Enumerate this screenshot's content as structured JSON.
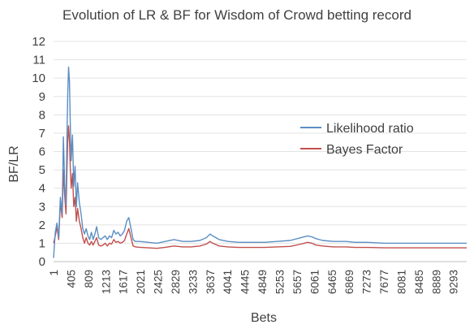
{
  "chart_data": {
    "type": "line",
    "title": "Evolution of LR & BF for Wisdom of Crowd betting record",
    "xlabel": "Bets",
    "ylabel": "BF/LR",
    "ylim": [
      0,
      12
    ],
    "xlim": [
      1,
      9600
    ],
    "yticks": [
      "0",
      "1",
      "2",
      "3",
      "4",
      "5",
      "6",
      "7",
      "8",
      "9",
      "10",
      "11",
      "12"
    ],
    "xticks": [
      1,
      405,
      809,
      1213,
      1617,
      2021,
      2425,
      2829,
      3233,
      3637,
      4041,
      4445,
      4849,
      5253,
      5657,
      6061,
      6465,
      6869,
      7273,
      7677,
      8081,
      8485,
      8889,
      9293
    ],
    "grid": true,
    "legend_position": "right-middle",
    "series": [
      {
        "name": "Likelihood ratio",
        "color": "#5b8ec3",
        "points": [
          [
            1,
            0.2
          ],
          [
            40,
            1.6
          ],
          [
            80,
            2.1
          ],
          [
            120,
            1.3
          ],
          [
            160,
            3.5
          ],
          [
            200,
            2.6
          ],
          [
            230,
            6.8
          ],
          [
            260,
            4.2
          ],
          [
            290,
            3.1
          ],
          [
            310,
            6.5
          ],
          [
            330,
            9.0
          ],
          [
            350,
            10.6
          ],
          [
            370,
            9.8
          ],
          [
            390,
            7.5
          ],
          [
            410,
            5.5
          ],
          [
            440,
            6.9
          ],
          [
            470,
            4.1
          ],
          [
            500,
            5.2
          ],
          [
            530,
            3.0
          ],
          [
            560,
            4.3
          ],
          [
            600,
            3.2
          ],
          [
            640,
            2.6
          ],
          [
            680,
            1.8
          ],
          [
            720,
            1.5
          ],
          [
            760,
            1.8
          ],
          [
            800,
            1.4
          ],
          [
            840,
            1.2
          ],
          [
            880,
            1.6
          ],
          [
            920,
            1.2
          ],
          [
            960,
            1.5
          ],
          [
            1000,
            1.9
          ],
          [
            1050,
            1.3
          ],
          [
            1100,
            1.2
          ],
          [
            1150,
            1.3
          ],
          [
            1200,
            1.4
          ],
          [
            1250,
            1.2
          ],
          [
            1300,
            1.4
          ],
          [
            1350,
            1.3
          ],
          [
            1400,
            1.7
          ],
          [
            1450,
            1.5
          ],
          [
            1500,
            1.6
          ],
          [
            1550,
            1.4
          ],
          [
            1600,
            1.5
          ],
          [
            1650,
            1.7
          ],
          [
            1700,
            2.2
          ],
          [
            1750,
            2.4
          ],
          [
            1800,
            1.8
          ],
          [
            1850,
            1.2
          ],
          [
            1900,
            1.1
          ],
          [
            2000,
            1.1
          ],
          [
            2200,
            1.05
          ],
          [
            2400,
            1.0
          ],
          [
            2600,
            1.1
          ],
          [
            2800,
            1.2
          ],
          [
            3000,
            1.1
          ],
          [
            3200,
            1.1
          ],
          [
            3400,
            1.15
          ],
          [
            3550,
            1.3
          ],
          [
            3637,
            1.5
          ],
          [
            3700,
            1.4
          ],
          [
            3850,
            1.2
          ],
          [
            4050,
            1.1
          ],
          [
            4300,
            1.05
          ],
          [
            4600,
            1.05
          ],
          [
            4900,
            1.05
          ],
          [
            5200,
            1.1
          ],
          [
            5500,
            1.15
          ],
          [
            5750,
            1.3
          ],
          [
            5900,
            1.4
          ],
          [
            6000,
            1.35
          ],
          [
            6100,
            1.25
          ],
          [
            6250,
            1.15
          ],
          [
            6500,
            1.1
          ],
          [
            6800,
            1.1
          ],
          [
            7000,
            1.05
          ],
          [
            7300,
            1.05
          ],
          [
            7700,
            1.0
          ],
          [
            8081,
            1.0
          ],
          [
            8300,
            1.0
          ],
          [
            8700,
            1.0
          ],
          [
            9100,
            1.0
          ],
          [
            9600,
            1.0
          ]
        ]
      },
      {
        "name": "Bayes Factor",
        "color": "#c0504d",
        "points": [
          [
            1,
            1.0
          ],
          [
            40,
            1.4
          ],
          [
            80,
            1.9
          ],
          [
            120,
            1.2
          ],
          [
            160,
            3.2
          ],
          [
            200,
            2.4
          ],
          [
            230,
            5.0
          ],
          [
            260,
            3.6
          ],
          [
            290,
            2.6
          ],
          [
            310,
            4.8
          ],
          [
            330,
            6.5
          ],
          [
            350,
            7.4
          ],
          [
            370,
            6.6
          ],
          [
            390,
            5.1
          ],
          [
            410,
            4.0
          ],
          [
            440,
            4.8
          ],
          [
            470,
            3.0
          ],
          [
            500,
            3.5
          ],
          [
            530,
            2.2
          ],
          [
            560,
            2.9
          ],
          [
            600,
            2.2
          ],
          [
            640,
            1.8
          ],
          [
            680,
            1.3
          ],
          [
            720,
            1.0
          ],
          [
            760,
            1.3
          ],
          [
            800,
            1.0
          ],
          [
            840,
            0.9
          ],
          [
            880,
            1.1
          ],
          [
            920,
            0.9
          ],
          [
            960,
            1.1
          ],
          [
            1000,
            1.3
          ],
          [
            1050,
            0.9
          ],
          [
            1100,
            0.85
          ],
          [
            1150,
            0.9
          ],
          [
            1200,
            1.0
          ],
          [
            1250,
            0.85
          ],
          [
            1300,
            1.0
          ],
          [
            1350,
            0.95
          ],
          [
            1400,
            1.2
          ],
          [
            1450,
            1.05
          ],
          [
            1500,
            1.1
          ],
          [
            1550,
            1.0
          ],
          [
            1600,
            1.05
          ],
          [
            1650,
            1.15
          ],
          [
            1700,
            1.5
          ],
          [
            1750,
            1.8
          ],
          [
            1800,
            1.3
          ],
          [
            1850,
            0.85
          ],
          [
            1900,
            0.8
          ],
          [
            2000,
            0.78
          ],
          [
            2200,
            0.75
          ],
          [
            2400,
            0.72
          ],
          [
            2600,
            0.78
          ],
          [
            2800,
            0.85
          ],
          [
            3000,
            0.8
          ],
          [
            3200,
            0.8
          ],
          [
            3400,
            0.85
          ],
          [
            3550,
            0.95
          ],
          [
            3637,
            1.1
          ],
          [
            3700,
            1.0
          ],
          [
            3850,
            0.85
          ],
          [
            4050,
            0.8
          ],
          [
            4300,
            0.77
          ],
          [
            4600,
            0.77
          ],
          [
            4900,
            0.77
          ],
          [
            5200,
            0.8
          ],
          [
            5500,
            0.83
          ],
          [
            5750,
            0.95
          ],
          [
            5900,
            1.05
          ],
          [
            6000,
            1.0
          ],
          [
            6100,
            0.9
          ],
          [
            6250,
            0.85
          ],
          [
            6500,
            0.8
          ],
          [
            6800,
            0.8
          ],
          [
            7000,
            0.77
          ],
          [
            7300,
            0.77
          ],
          [
            7700,
            0.75
          ],
          [
            8081,
            0.75
          ],
          [
            8300,
            0.75
          ],
          [
            8700,
            0.75
          ],
          [
            9100,
            0.75
          ],
          [
            9600,
            0.75
          ]
        ]
      }
    ]
  }
}
